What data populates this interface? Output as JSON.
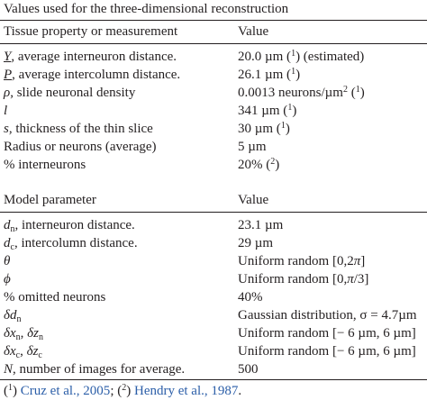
{
  "caption": "Values used for the three-dimensional reconstruction",
  "table1": {
    "header": {
      "col1": "Tissue property or measurement",
      "col2": "Value"
    },
    "rows": [
      {
        "sym": "Y",
        "desc": ", average interneuron distance.",
        "val_a": "20.0 µm (",
        "ref": "1",
        "val_b": ") (estimated)"
      },
      {
        "sym": "P",
        "desc": ", average intercolumn distance.",
        "val_a": "26.1 µm (",
        "ref": "1",
        "val_b": ")"
      },
      {
        "sym": "ρ",
        "desc": ", slide neuronal density",
        "val_a": "0.0013 neurons/µm",
        "val_sup": "2",
        "val_mid": " (",
        "ref": "1",
        "val_b": ")"
      },
      {
        "sym": "l",
        "desc": "",
        "val_a": "341 µm (",
        "ref": "1",
        "val_b": ")"
      },
      {
        "sym": "s",
        "desc": ", thickness of the thin slice",
        "val_a": "30 µm (",
        "ref": "1",
        "val_b": ")"
      },
      {
        "desc": "Radius or neurons (average)",
        "val_a": "5 µm"
      },
      {
        "desc": "% interneurons",
        "val_a": "20% (",
        "ref": "2",
        "val_b": ")"
      }
    ]
  },
  "table2": {
    "header": {
      "col1": "Model parameter",
      "col2": "Value"
    },
    "rows": [
      {
        "sym": "d",
        "sub": "n",
        "desc": ", interneuron distance.",
        "val": "23.1 µm"
      },
      {
        "sym": "d",
        "sub": "c",
        "desc": ", intercolumn distance.",
        "val": "29 µm"
      },
      {
        "sym": "θ",
        "val_a": "Uniform random [0,2",
        "val_i": "π",
        "val_b": "]"
      },
      {
        "sym": "ϕ",
        "val_a": "Uniform random [0,",
        "val_i": "π",
        "val_b": "/3]"
      },
      {
        "desc": "% omitted neurons",
        "val": "40%"
      },
      {
        "sym": "δd",
        "sub": "n",
        "val": "Gaussian distribution, σ = 4.7µm"
      },
      {
        "sym1": "δx",
        "sub1": "n",
        "sep": ", ",
        "sym2": "δz",
        "sub2": "n",
        "val": "Uniform random [− 6 µm, 6 µm]"
      },
      {
        "sym1": "δx",
        "sub1": "c",
        "sep": ", ",
        "sym2": "δz",
        "sub2": "c",
        "val": "Uniform random [− 6 µm, 6 µm]"
      },
      {
        "sym": "N",
        "desc": ", number of images for average.",
        "val": "500"
      }
    ]
  },
  "footnote": {
    "p1": "(",
    "n1": "1",
    "p2": ") ",
    "ref1": "Cruz et al., 2005",
    "p3": "; (",
    "n2": "2",
    "p4": ") ",
    "ref2": "Hendry et al., 1987",
    "p5": "."
  }
}
